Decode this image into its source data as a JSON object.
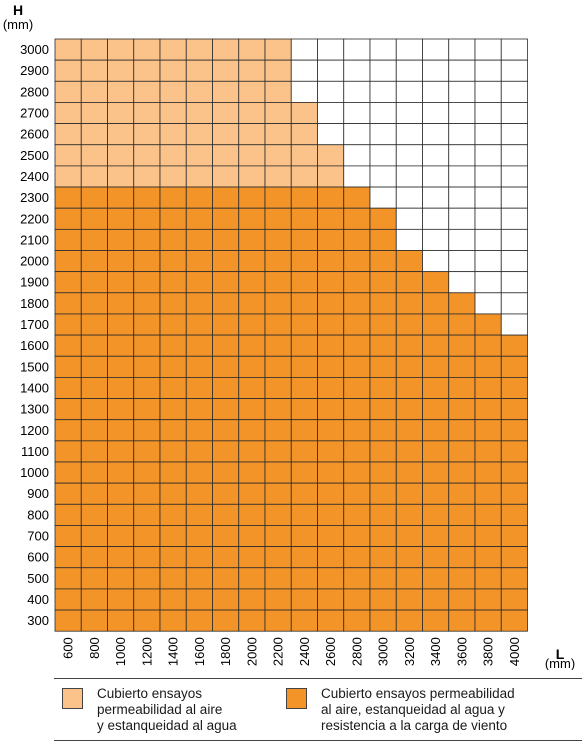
{
  "chart_data": {
    "type": "heatmap",
    "y_axis": {
      "title": "H",
      "unit": "(mm)",
      "ticks": [
        3000,
        2900,
        2800,
        2700,
        2600,
        2500,
        2400,
        2300,
        2200,
        2100,
        2000,
        1900,
        1800,
        1700,
        1600,
        1500,
        1400,
        1300,
        1200,
        1100,
        1000,
        900,
        800,
        700,
        600,
        500,
        400,
        300
      ]
    },
    "x_axis": {
      "title": "L",
      "unit": "(mm)",
      "ticks": [
        600,
        800,
        1000,
        1200,
        1400,
        1600,
        1800,
        2000,
        2200,
        2400,
        2600,
        2800,
        3000,
        3200,
        3400,
        3600,
        3800,
        4000
      ]
    },
    "legend": [
      {
        "key": "air_water",
        "label": "Cubierto ensayos\npermeabilidad al aire\ny estanqueidad al agua",
        "color": "#fbc38a"
      },
      {
        "key": "air_water_wind",
        "label": "Cubierto ensayos permeabilidad\nal aire, estanqueidad al agua y\nresistencia a la carga de viento",
        "color": "#f39429"
      }
    ],
    "max_height_by_width": [
      {
        "L": 600,
        "air_water_wind": 2300,
        "air_water": 3000
      },
      {
        "L": 800,
        "air_water_wind": 2300,
        "air_water": 3000
      },
      {
        "L": 1000,
        "air_water_wind": 2300,
        "air_water": 3000
      },
      {
        "L": 1200,
        "air_water_wind": 2300,
        "air_water": 3000
      },
      {
        "L": 1400,
        "air_water_wind": 2300,
        "air_water": 3000
      },
      {
        "L": 1600,
        "air_water_wind": 2300,
        "air_water": 3000
      },
      {
        "L": 1800,
        "air_water_wind": 2300,
        "air_water": 3000
      },
      {
        "L": 2000,
        "air_water_wind": 2300,
        "air_water": 3000
      },
      {
        "L": 2200,
        "air_water_wind": 2300,
        "air_water": 3000
      },
      {
        "L": 2400,
        "air_water_wind": 2300,
        "air_water": 2700
      },
      {
        "L": 2600,
        "air_water_wind": 2300,
        "air_water": 2500
      },
      {
        "L": 2800,
        "air_water_wind": 2300,
        "air_water": 2300
      },
      {
        "L": 3000,
        "air_water_wind": 2200,
        "air_water": 2200
      },
      {
        "L": 3200,
        "air_water_wind": 2000,
        "air_water": 2000
      },
      {
        "L": 3400,
        "air_water_wind": 1900,
        "air_water": 1900
      },
      {
        "L": 3600,
        "air_water_wind": 1800,
        "air_water": 1800
      },
      {
        "L": 3800,
        "air_water_wind": 1700,
        "air_water": 1700
      },
      {
        "L": 4000,
        "air_water_wind": 1600,
        "air_water": 1600
      }
    ],
    "grid": true
  }
}
